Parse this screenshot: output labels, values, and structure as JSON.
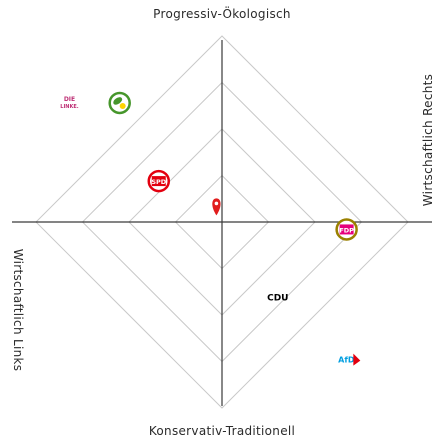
{
  "chart_data": {
    "type": "scatter",
    "axis_labels": {
      "top": "Progressiv-Ökologisch",
      "bottom": "Konservativ-Traditionell",
      "left": "Wirtschaftlich Links",
      "right": "Wirtschaftlich Rechts"
    },
    "xlim": [
      -1,
      1
    ],
    "ylim": [
      -1,
      1
    ],
    "grid": "concentric rhombi",
    "points": [
      {
        "name": "Die Linke",
        "logo_text": "DIE LINKE.",
        "x": -0.82,
        "y": 0.64,
        "color": "#be3075"
      },
      {
        "name": "Bündnis 90/Die Grünen",
        "logo_text": "",
        "x": -0.55,
        "y": 0.64,
        "color": "#46962b"
      },
      {
        "name": "SPD",
        "logo_text": "SPD",
        "x": -0.34,
        "y": 0.22,
        "color": "#e3000f"
      },
      {
        "name": "FDP",
        "logo_text": "FDP",
        "x": 0.67,
        "y": -0.04,
        "color": "#e8bf00"
      },
      {
        "name": "CDU",
        "logo_text": "CDU",
        "x": 0.3,
        "y": -0.4,
        "color": "#000000"
      },
      {
        "name": "AfD",
        "logo_text": "AfD",
        "x": 0.69,
        "y": -0.74,
        "color": "#009ee0"
      }
    ],
    "user_marker": {
      "x": -0.03,
      "y": 0.1,
      "color": "#e11d1d"
    }
  }
}
